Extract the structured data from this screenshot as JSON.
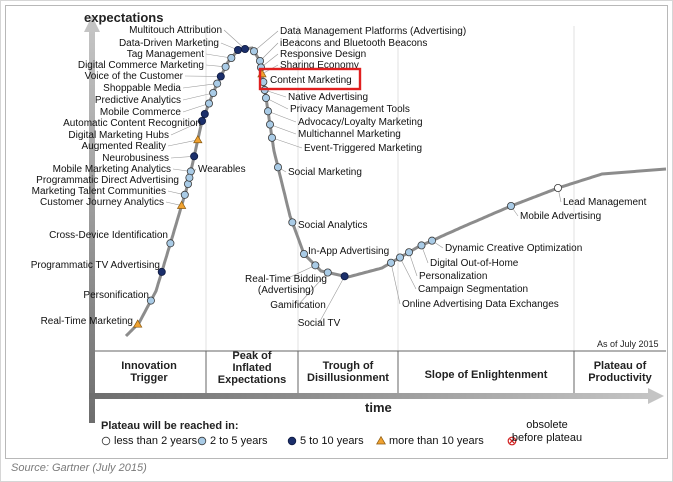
{
  "figure": {
    "y_axis_label": "expectations",
    "x_axis_label": "time",
    "as_of": "As of July 2015",
    "source": "Source: Gartner (July 2015)"
  },
  "colors": {
    "lt2": "#ffffff",
    "2to5": "#a9cbe6",
    "5to10": "#1b2f6b",
    "gt10": "#f0a230",
    "highlight": "#e02020"
  },
  "phases": [
    {
      "id": "trigger",
      "label": "Innovation\nTrigger"
    },
    {
      "id": "peak",
      "label": "Peak of\nInflated\nExpectations"
    },
    {
      "id": "trough",
      "label": "Trough of\nDisillusionment"
    },
    {
      "id": "slope",
      "label": "Slope of Enlightenment"
    },
    {
      "id": "plateau",
      "label": "Plateau of\nProductivity"
    }
  ],
  "legend": {
    "title": "Plateau will be reached in:",
    "items": [
      {
        "key": "lt2",
        "label": "less than 2 years"
      },
      {
        "key": "2to5",
        "label": "2 to 5 years"
      },
      {
        "key": "5to10",
        "label": "5 to 10 years"
      },
      {
        "key": "gt10",
        "label": "more than 10 years"
      },
      {
        "key": "obsolete",
        "label": "obsolete\nbefore plateau"
      }
    ]
  },
  "highlighted": "Content Marketing",
  "technologies": [
    {
      "label": "Multitouch Attribution",
      "t": 0.395,
      "cat": "5to10"
    },
    {
      "label": "Data-Driven Marketing",
      "t": 0.38,
      "cat": "5to10"
    },
    {
      "label": "Tag Management",
      "t": 0.36,
      "cat": "2to5"
    },
    {
      "label": "Digital Commerce Marketing",
      "t": 0.34,
      "cat": "2to5"
    },
    {
      "label": "Voice of the Customer",
      "t": 0.32,
      "cat": "5to10"
    },
    {
      "label": "Shoppable Media",
      "t": 0.305,
      "cat": "2to5"
    },
    {
      "label": "Predictive Analytics",
      "t": 0.29,
      "cat": "2to5"
    },
    {
      "label": "Mobile Commerce",
      "t": 0.275,
      "cat": "2to5"
    },
    {
      "label": "Automatic Content Recognition",
      "t": 0.26,
      "cat": "5to10"
    },
    {
      "label": "Digital Marketing Hubs",
      "t": 0.25,
      "cat": "5to10"
    },
    {
      "label": "Augmented Reality",
      "t": 0.235,
      "cat": "gt10"
    },
    {
      "label": "Neurobusiness",
      "t": 0.222,
      "cat": "5to10"
    },
    {
      "label": "Mobile Marketing Analytics",
      "t": 0.21,
      "cat": "2to5"
    },
    {
      "label": "Programmatic Direct Advertising",
      "t": 0.2,
      "cat": "2to5"
    },
    {
      "label": "Marketing Talent Communities",
      "t": 0.19,
      "cat": "2to5"
    },
    {
      "label": "Customer Journey Analytics",
      "t": 0.18,
      "cat": "gt10"
    },
    {
      "label": "Wearables",
      "t": 0.205,
      "cat": "2to5"
    },
    {
      "label": "Cross-Device Identification",
      "t": 0.145,
      "cat": "2to5"
    },
    {
      "label": "Programmatic TV Advertising",
      "t": 0.118,
      "cat": "5to10"
    },
    {
      "label": "Personification",
      "t": 0.085,
      "cat": "2to5"
    },
    {
      "label": "Real-Time Marketing",
      "t": 0.045,
      "cat": "gt10"
    },
    {
      "label": "Data Management Platforms (Advertising)",
      "t": 0.415,
      "cat": "2to5"
    },
    {
      "label": "iBeacons and Bluetooth Beacons",
      "t": 0.43,
      "cat": "2to5"
    },
    {
      "label": "Responsive Design",
      "t": 0.44,
      "cat": "2to5"
    },
    {
      "label": "Sharing Economy",
      "t": 0.45,
      "cat": "gt10"
    },
    {
      "label": "Content Marketing",
      "t": 0.46,
      "cat": "2to5"
    },
    {
      "label": "Native Advertising",
      "t": 0.47,
      "cat": "2to5"
    },
    {
      "label": "Privacy Management Tools",
      "t": 0.48,
      "cat": "2to5"
    },
    {
      "label": "Advocacy/Loyalty Marketing",
      "t": 0.49,
      "cat": "2to5"
    },
    {
      "label": "Multichannel Marketing",
      "t": 0.5,
      "cat": "2to5"
    },
    {
      "label": "Event-Triggered Marketing",
      "t": 0.51,
      "cat": "2to5"
    },
    {
      "label": "Social Marketing",
      "t": 0.53,
      "cat": "2to5"
    },
    {
      "label": "Social Analytics",
      "t": 0.565,
      "cat": "2to5"
    },
    {
      "label": "In-App Advertising",
      "t": 0.59,
      "cat": "2to5"
    },
    {
      "label": "Real-Time Bidding\n(Advertising)",
      "t": 0.61,
      "cat": "2to5"
    },
    {
      "label": "Gamification",
      "t": 0.63,
      "cat": "2to5"
    },
    {
      "label": "Social TV",
      "t": 0.655,
      "cat": "5to10"
    },
    {
      "label": "Online Advertising Data Exchanges",
      "t": 0.71,
      "cat": "2to5"
    },
    {
      "label": "Campaign Segmentation",
      "t": 0.72,
      "cat": "2to5"
    },
    {
      "label": "Personalization",
      "t": 0.73,
      "cat": "2to5"
    },
    {
      "label": "Digital Out-of-Home",
      "t": 0.745,
      "cat": "2to5"
    },
    {
      "label": "Dynamic Creative Optimization",
      "t": 0.76,
      "cat": "2to5"
    },
    {
      "label": "Mobile Advertising",
      "t": 0.87,
      "cat": "2to5"
    },
    {
      "label": "Lead Management",
      "t": 0.94,
      "cat": "lt2"
    }
  ]
}
